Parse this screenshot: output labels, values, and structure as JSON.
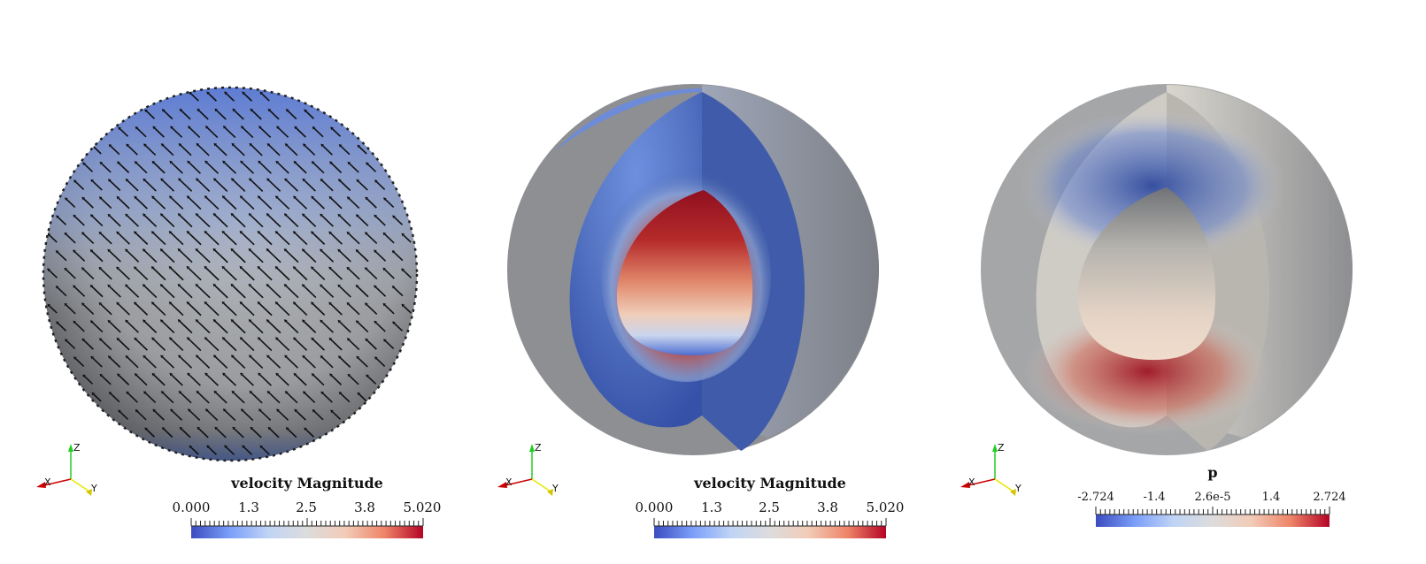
{
  "panels": [
    {
      "id": "surface-glyphs",
      "colorbar": {
        "title": "velocity Magnitude",
        "ticks": [
          "0.000",
          "1.3",
          "2.5",
          "3.8",
          "5.020"
        ],
        "range": [
          0.0,
          5.02
        ],
        "colors": [
          "#3b4cc0",
          "#7b9ff9",
          "#c0d4f5",
          "#dddcdc",
          "#f2cbb7",
          "#ee8468",
          "#b40426"
        ]
      }
    },
    {
      "id": "velocity-cutaway",
      "colorbar": {
        "title": "velocity Magnitude",
        "ticks": [
          "0.000",
          "1.3",
          "2.5",
          "3.8",
          "5.020"
        ],
        "range": [
          0.0,
          5.02
        ],
        "colors": [
          "#3b4cc0",
          "#7b9ff9",
          "#c0d4f5",
          "#dddcdc",
          "#f2cbb7",
          "#ee8468",
          "#b40426"
        ]
      }
    },
    {
      "id": "pressure-cutaway",
      "colorbar": {
        "title": "p",
        "ticks": [
          "-2.724",
          "-1.4",
          "2.6e-5",
          "1.4",
          "2.724"
        ],
        "range": [
          -2.724,
          2.724
        ],
        "colors": [
          "#3b4cc0",
          "#7b9ff9",
          "#c0d4f5",
          "#dddcdc",
          "#f2cbb7",
          "#ee8468",
          "#b40426"
        ]
      }
    }
  ],
  "axes_labels": {
    "x": "X",
    "y": "Y",
    "z": "Z"
  },
  "colors": {
    "axis_x": "#cc0000",
    "axis_y": "#e8e800",
    "axis_z": "#22cc22",
    "sphere_gray": "#b8b8b8",
    "sphere_dark": "#4a4a4a",
    "glyph": "#111111"
  }
}
